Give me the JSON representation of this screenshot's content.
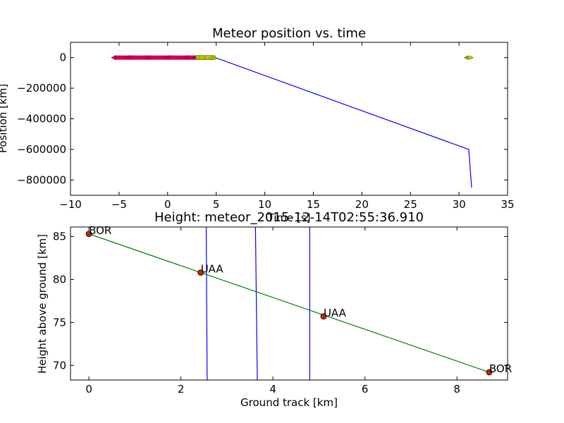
{
  "chart_data": [
    {
      "type": "line",
      "title": "Meteor position vs. time",
      "xlabel": "Time [s]",
      "ylabel": "Position [km]",
      "xlim": [
        -10,
        35
      ],
      "ylim": [
        -900000,
        100000
      ],
      "xticks": [
        -10,
        -5,
        0,
        5,
        10,
        15,
        20,
        25,
        30,
        35
      ],
      "yticks": [
        0,
        -200000,
        -400000,
        -600000,
        -800000
      ],
      "ytick_labels": [
        "0",
        "−200000",
        "−400000",
        "−600000",
        "−800000"
      ],
      "colors": {
        "line": "#0000ff",
        "bor": "#cc0055",
        "uaa": "#cccc00"
      },
      "series": [
        {
          "kind": "line",
          "x": [
            -5.5,
            4.9,
            31.0,
            31.3
          ],
          "y": [
            0,
            0,
            -600000,
            -850000
          ]
        },
        {
          "kind": "points",
          "x": [
            -5.5,
            -4,
            -2,
            0,
            2,
            2.9
          ],
          "y": [
            0,
            0,
            0,
            0,
            0,
            0
          ]
        },
        {
          "kind": "points",
          "x": [
            3.2,
            3.8,
            4.4,
            4.8
          ],
          "y": [
            0,
            0,
            0,
            0
          ]
        },
        {
          "kind": "points",
          "x": [
            30.9,
            31.1
          ],
          "y": [
            0,
            0
          ]
        }
      ]
    },
    {
      "type": "line",
      "title": "Height: meteor_2015-12-14T02:55:36.910",
      "xlabel": "Ground track [km]",
      "ylabel": "Height above ground [km]",
      "xlim": [
        -0.4,
        9.1
      ],
      "ylim": [
        68.3,
        86.1
      ],
      "xticks": [
        0,
        2,
        4,
        6,
        8
      ],
      "yticks": [
        70,
        75,
        80,
        85
      ],
      "colors": {
        "track": "#008000",
        "vlines": "#0000ff",
        "marker": "#cc2200"
      },
      "track": {
        "x": [
          0,
          8.7
        ],
        "y": [
          85.3,
          69.2
        ]
      },
      "vlines": [
        {
          "x": [
            2.55,
            2.57
          ],
          "y": [
            86.1,
            68.3
          ]
        },
        {
          "x": [
            3.62,
            3.66
          ],
          "y": [
            86.1,
            68.3
          ]
        },
        {
          "x": [
            4.8,
            4.8
          ],
          "y": [
            86.1,
            68.3
          ]
        }
      ],
      "stations": [
        {
          "label": "BOR",
          "x": 0.0,
          "y": 85.3
        },
        {
          "label": "UAA",
          "x": 2.43,
          "y": 80.8
        },
        {
          "label": "UAA",
          "x": 5.1,
          "y": 75.7
        },
        {
          "label": "BOR",
          "x": 8.7,
          "y": 69.2
        }
      ]
    }
  ]
}
